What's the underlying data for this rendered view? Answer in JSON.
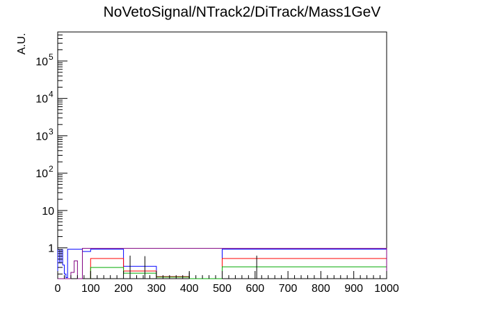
{
  "chart_data": {
    "type": "histogram",
    "title": "NoVetoSignal/NTrack2/DiTrack/Mass1GeV",
    "xlabel": "",
    "ylabel": "A.U.",
    "x_scale": "linear",
    "y_scale": "log",
    "xlim": [
      0,
      1000
    ],
    "ylim": [
      0.15,
      600000
    ],
    "grid": false,
    "legend": "none",
    "x_ticks": [
      {
        "value": 0,
        "label": "0"
      },
      {
        "value": 100,
        "label": "100"
      },
      {
        "value": 200,
        "label": "200"
      },
      {
        "value": 300,
        "label": "300"
      },
      {
        "value": 400,
        "label": "400"
      },
      {
        "value": 500,
        "label": "500"
      },
      {
        "value": 600,
        "label": "600"
      },
      {
        "value": 700,
        "label": "700"
      },
      {
        "value": 800,
        "label": "800"
      },
      {
        "value": 900,
        "label": "900"
      },
      {
        "value": 1000,
        "label": "1000"
      }
    ],
    "y_ticks": [
      {
        "value": 1,
        "label": "1",
        "exp": ""
      },
      {
        "value": 10,
        "label": "10",
        "exp": ""
      },
      {
        "value": 100,
        "label": "10",
        "exp": "2"
      },
      {
        "value": 1000,
        "label": "10",
        "exp": "3"
      },
      {
        "value": 10000,
        "label": "10",
        "exp": "4"
      },
      {
        "value": 100000,
        "label": "10",
        "exp": "5"
      }
    ],
    "colors": {
      "red": "#ff0000",
      "green": "#00aa00",
      "blue": "#0000ff",
      "purple": "#800080",
      "black": "#000000"
    },
    "series": [
      {
        "color": "#0000ff",
        "edges": [
          0,
          5,
          10,
          15,
          20,
          25,
          30,
          75,
          100,
          200,
          300,
          400,
          500,
          1000
        ],
        "values": [
          0.9,
          0.4,
          0.9,
          0.35,
          0.2,
          0.16,
          0.92,
          0.8,
          0.92,
          0.32,
          0.17,
          0.15,
          0.92
        ]
      },
      {
        "color": "#ff0000",
        "edges": [
          100,
          200,
          300,
          400,
          500,
          1000
        ],
        "values": [
          0.52,
          0.24,
          0.17,
          0.15,
          0.52
        ]
      },
      {
        "color": "#00aa00",
        "edges": [
          100,
          200,
          300,
          400,
          500,
          1000
        ],
        "values": [
          0.3,
          0.21,
          0.165,
          0.15,
          0.31
        ]
      },
      {
        "color": "#800080",
        "edges": [
          0,
          30,
          40,
          45,
          50,
          55,
          60,
          75,
          1000
        ],
        "values": [
          0.15,
          0.15,
          0.22,
          0.22,
          0.45,
          0.45,
          0.15,
          0.97
        ]
      }
    ],
    "error_bars": [
      {
        "x": 220,
        "low": 0.15,
        "high": 0.62
      },
      {
        "x": 265,
        "low": 0.15,
        "high": 0.6
      },
      {
        "x": 400,
        "low": 0.15,
        "high": 0.22
      },
      {
        "x": 605,
        "low": 0.15,
        "high": 0.62
      }
    ]
  }
}
